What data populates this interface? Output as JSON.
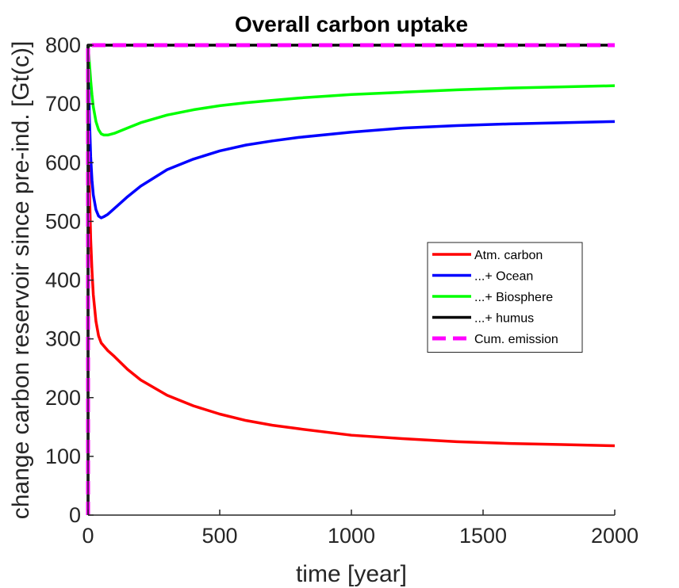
{
  "chart_data": {
    "type": "line",
    "title": "Overall carbon uptake",
    "xlabel": "time [year]",
    "ylabel": "change carbon reservoir since pre-ind. [Gt(c)]",
    "xlim": [
      0,
      2000
    ],
    "ylim": [
      0,
      800
    ],
    "xticks": [
      "0",
      "500",
      "1000",
      "1500",
      "2000"
    ],
    "yticks": [
      "0",
      "100",
      "200",
      "300",
      "400",
      "500",
      "600",
      "700",
      "800"
    ],
    "grid": false,
    "legend_position": "right",
    "series": [
      {
        "name": "Atm. carbon",
        "color": "#ff0000",
        "style": "solid",
        "x": [
          0,
          5,
          10,
          15,
          20,
          30,
          40,
          50,
          75,
          100,
          150,
          200,
          300,
          400,
          500,
          600,
          700,
          800,
          1000,
          1200,
          1400,
          1600,
          1800,
          2000
        ],
        "y": [
          800,
          560,
          470,
          415,
          375,
          330,
          305,
          293,
          280,
          270,
          248,
          230,
          204,
          186,
          172,
          161,
          153,
          147,
          136,
          130,
          125,
          122,
          120,
          118
        ]
      },
      {
        "name": "...+ Ocean",
        "color": "#0000ff",
        "style": "solid",
        "x": [
          0,
          5,
          10,
          15,
          20,
          30,
          40,
          50,
          60,
          75,
          100,
          150,
          200,
          300,
          400,
          500,
          600,
          700,
          800,
          1000,
          1200,
          1400,
          1600,
          1800,
          2000
        ],
        "y": [
          800,
          680,
          610,
          570,
          545,
          520,
          509,
          506,
          508,
          512,
          522,
          542,
          560,
          588,
          606,
          620,
          630,
          637,
          643,
          652,
          659,
          663,
          666,
          668,
          670
        ]
      },
      {
        "name": "...+ Biosphere",
        "color": "#00ff00",
        "style": "solid",
        "x": [
          0,
          5,
          10,
          15,
          20,
          30,
          40,
          50,
          60,
          75,
          100,
          150,
          200,
          300,
          400,
          500,
          600,
          700,
          800,
          1000,
          1200,
          1400,
          1600,
          1800,
          2000
        ],
        "y": [
          800,
          770,
          740,
          715,
          695,
          670,
          656,
          649,
          647,
          647,
          650,
          659,
          668,
          681,
          690,
          697,
          702,
          706,
          710,
          716,
          720,
          724,
          727,
          729,
          731
        ]
      },
      {
        "name": "...+ humus",
        "color": "#000000",
        "style": "solid",
        "x": [
          0,
          0,
          2000
        ],
        "y": [
          0,
          800,
          800
        ]
      },
      {
        "name": "Cum. emission",
        "color": "#ff00ff",
        "style": "dashed",
        "x": [
          0,
          0,
          2000
        ],
        "y": [
          0,
          800,
          800
        ]
      }
    ]
  }
}
